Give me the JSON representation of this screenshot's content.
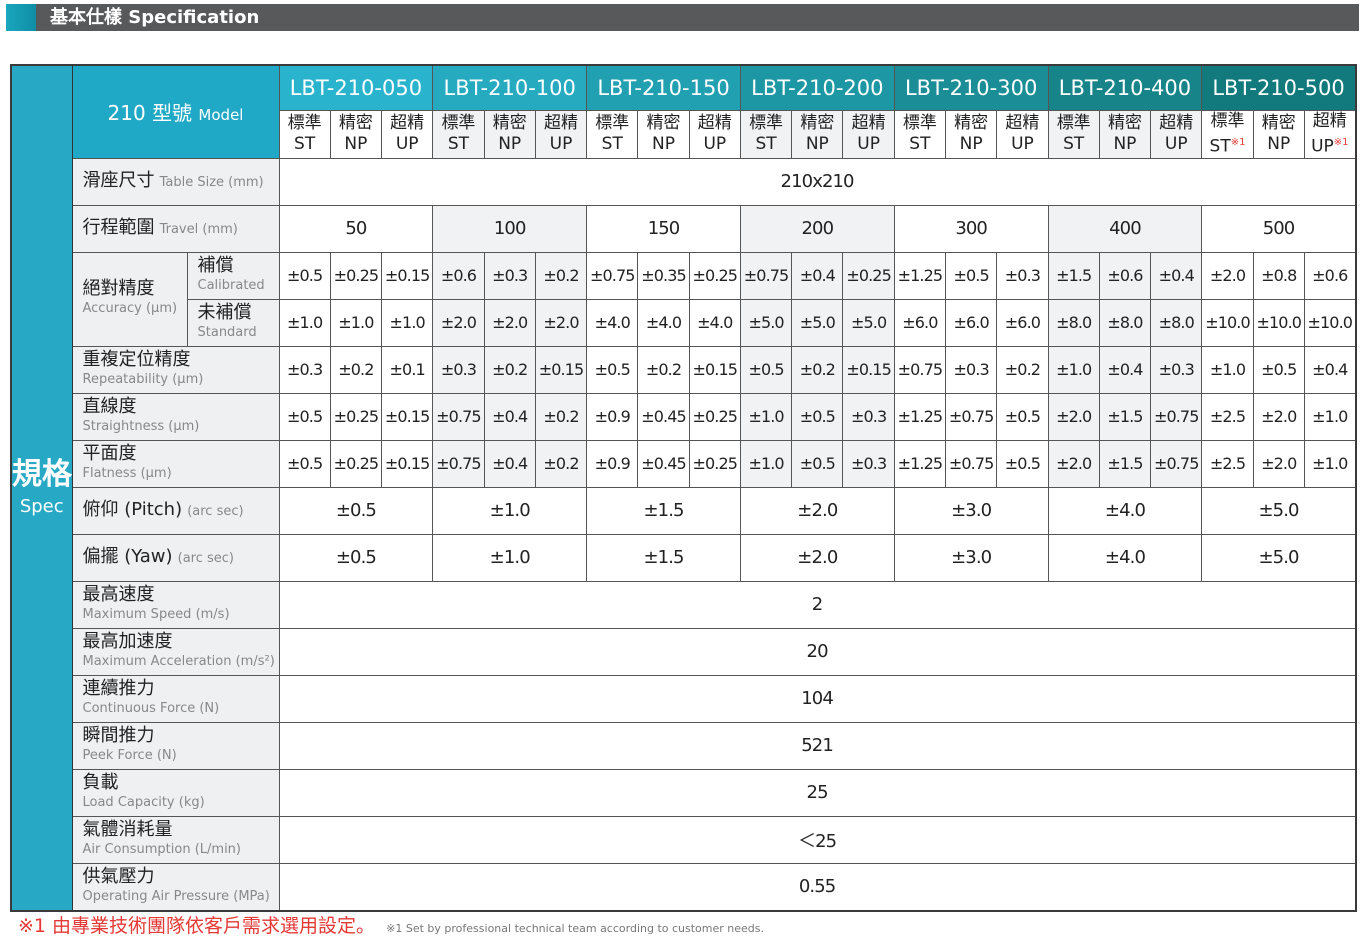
{
  "title": "基本仕樣 Specification",
  "spec_label": {
    "zh": "規格",
    "en": "Spec"
  },
  "model_label": {
    "num": "210 型號",
    "en": "Model"
  },
  "models": [
    {
      "name": "LBT-210-050",
      "grades": [
        {
          "zh": "標準",
          "en": "ST",
          "note": ""
        },
        {
          "zh": "精密",
          "en": "NP",
          "note": ""
        },
        {
          "zh": "超精",
          "en": "UP",
          "note": ""
        }
      ]
    },
    {
      "name": "LBT-210-100",
      "grades": [
        {
          "zh": "標準",
          "en": "ST",
          "note": ""
        },
        {
          "zh": "精密",
          "en": "NP",
          "note": ""
        },
        {
          "zh": "超精",
          "en": "UP",
          "note": ""
        }
      ]
    },
    {
      "name": "LBT-210-150",
      "grades": [
        {
          "zh": "標準",
          "en": "ST",
          "note": ""
        },
        {
          "zh": "精密",
          "en": "NP",
          "note": ""
        },
        {
          "zh": "超精",
          "en": "UP",
          "note": ""
        }
      ]
    },
    {
      "name": "LBT-210-200",
      "grades": [
        {
          "zh": "標準",
          "en": "ST",
          "note": ""
        },
        {
          "zh": "精密",
          "en": "NP",
          "note": ""
        },
        {
          "zh": "超精",
          "en": "UP",
          "note": ""
        }
      ]
    },
    {
      "name": "LBT-210-300",
      "grades": [
        {
          "zh": "標準",
          "en": "ST",
          "note": ""
        },
        {
          "zh": "精密",
          "en": "NP",
          "note": ""
        },
        {
          "zh": "超精",
          "en": "UP",
          "note": ""
        }
      ]
    },
    {
      "name": "LBT-210-400",
      "grades": [
        {
          "zh": "標準",
          "en": "ST",
          "note": ""
        },
        {
          "zh": "精密",
          "en": "NP",
          "note": ""
        },
        {
          "zh": "超精",
          "en": "UP",
          "note": ""
        }
      ]
    },
    {
      "name": "LBT-210-500",
      "grades": [
        {
          "zh": "標準",
          "en": "ST",
          "note": "※1"
        },
        {
          "zh": "精密",
          "en": "NP",
          "note": ""
        },
        {
          "zh": "超精",
          "en": "UP",
          "note": "※1"
        }
      ]
    }
  ],
  "rows": [
    {
      "type": "span",
      "zh": "滑座尺寸",
      "en": "Table Size (mm)",
      "inline": true,
      "value": "210x210"
    },
    {
      "type": "group",
      "zh": "行程範圍",
      "en": "Travel  (mm)",
      "inline": true,
      "values": [
        "50",
        "100",
        "150",
        "200",
        "300",
        "400",
        "500"
      ]
    },
    {
      "type": "split",
      "zh": "絕對精度",
      "en": "Accuracy (µm)",
      "sub": [
        {
          "zh": "補償",
          "en": "Calibrated",
          "values": [
            "±0.5",
            "±0.25",
            "±0.15",
            "±0.6",
            "±0.3",
            "±0.2",
            "±0.75",
            "±0.35",
            "±0.25",
            "±0.75",
            "±0.4",
            "±0.25",
            "±1.25",
            "±0.5",
            "±0.3",
            "±1.5",
            "±0.6",
            "±0.4",
            "±2.0",
            "±0.8",
            "±0.6"
          ]
        },
        {
          "zh": "未補償",
          "en": "Standard",
          "values": [
            "±1.0",
            "±1.0",
            "±1.0",
            "±2.0",
            "±2.0",
            "±2.0",
            "±4.0",
            "±4.0",
            "±4.0",
            "±5.0",
            "±5.0",
            "±5.0",
            "±6.0",
            "±6.0",
            "±6.0",
            "±8.0",
            "±8.0",
            "±8.0",
            "±10.0",
            "±10.0",
            "±10.0"
          ]
        }
      ]
    },
    {
      "type": "cells",
      "zh": "重複定位精度",
      "en": "Repeatability (µm)",
      "values": [
        "±0.3",
        "±0.2",
        "±0.1",
        "±0.3",
        "±0.2",
        "±0.15",
        "±0.5",
        "±0.2",
        "±0.15",
        "±0.5",
        "±0.2",
        "±0.15",
        "±0.75",
        "±0.3",
        "±0.2",
        "±1.0",
        "±0.4",
        "±0.3",
        "±1.0",
        "±0.5",
        "±0.4"
      ]
    },
    {
      "type": "cells",
      "zh": "直線度",
      "en": "Straightness (µm)",
      "values": [
        "±0.5",
        "±0.25",
        "±0.15",
        "±0.75",
        "±0.4",
        "±0.2",
        "±0.9",
        "±0.45",
        "±0.25",
        "±1.0",
        "±0.5",
        "±0.3",
        "±1.25",
        "±0.75",
        "±0.5",
        "±2.0",
        "±1.5",
        "±0.75",
        "±2.5",
        "±2.0",
        "±1.0"
      ]
    },
    {
      "type": "cells",
      "zh": "平面度",
      "en": "Flatness (µm)",
      "values": [
        "±0.5",
        "±0.25",
        "±0.15",
        "±0.75",
        "±0.4",
        "±0.2",
        "±0.9",
        "±0.45",
        "±0.25",
        "±1.0",
        "±0.5",
        "±0.3",
        "±1.25",
        "±0.75",
        "±0.5",
        "±2.0",
        "±1.5",
        "±0.75",
        "±2.5",
        "±2.0",
        "±1.0"
      ]
    },
    {
      "type": "groupw",
      "zh": "俯仰 (Pitch)",
      "en": "(arc sec)",
      "inline": true,
      "values": [
        "±0.5",
        "±1.0",
        "±1.5",
        "±2.0",
        "±3.0",
        "±4.0",
        "±5.0"
      ]
    },
    {
      "type": "groupw",
      "zh": "偏擺 (Yaw)",
      "en": "(arc sec)",
      "inline": true,
      "values": [
        "±0.5",
        "±1.0",
        "±1.5",
        "±2.0",
        "±3.0",
        "±4.0",
        "±5.0"
      ]
    },
    {
      "type": "span",
      "zh": "最高速度",
      "en": "Maximum Speed (m/s)",
      "value": "2"
    },
    {
      "type": "span",
      "zh": "最高加速度",
      "en": "Maximum Acceleration (m/s²)",
      "value": "20"
    },
    {
      "type": "span",
      "zh": "連續推力",
      "en": "Continuous Force (N)",
      "value": "104"
    },
    {
      "type": "span",
      "zh": "瞬間推力",
      "en": "Peek Force (N)",
      "value": "521"
    },
    {
      "type": "span",
      "zh": "負載",
      "en": "Load Capacity (kg)",
      "value": "25"
    },
    {
      "type": "span",
      "zh": "氣體消耗量",
      "en": "Air Consumption (L/min)",
      "value": "＜25"
    },
    {
      "type": "span",
      "zh": "供氣壓力",
      "en": "Operating Air Pressure (MPa)",
      "value": "0.55"
    }
  ],
  "footnote": {
    "zh": "※1 由專業技術團隊依客戶需求選用設定。",
    "en": "※1 Set by professional technical team according to customer needs."
  },
  "colors": {
    "spec": "#27a9c6",
    "header_start": "#29b3cc",
    "header_end": "#127a7c",
    "footnote": "#e53935",
    "title_bar": "#58595b"
  }
}
